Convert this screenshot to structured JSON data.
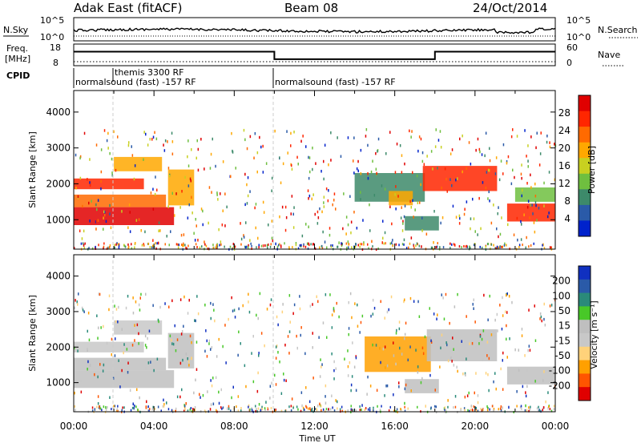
{
  "header": {
    "left": "Adak East (fitACF)",
    "center": "Beam 08",
    "right": "24/Oct/2014"
  },
  "top_panels": {
    "nsky_label": "N.Sky",
    "nsearch_label": "N.Search",
    "noise_tick_top": "10^5",
    "noise_tick_bottom": "10^0",
    "freq_label": "Freq.",
    "freq_unit": "[MHz]",
    "freq_ticks": [
      "18",
      "8"
    ],
    "nave_label": "Nave",
    "nave_ticks": [
      "60",
      "0"
    ],
    "cpid_label": "CPID",
    "cpid_segments": [
      {
        "label": "normalsound (fast) -157 RF",
        "start_h": 0,
        "end_h": 10
      },
      {
        "label": "themis 3300 RF",
        "start_h": 1.5,
        "end_h": 2
      },
      {
        "label": "normalsound (fast) -157 RF",
        "start_h": 10,
        "end_h": 24
      }
    ],
    "freq_series": {
      "x": [
        0,
        10,
        10,
        18,
        18,
        24
      ],
      "values": [
        14.5,
        14.5,
        11.0,
        11.0,
        14.5,
        14.5
      ]
    }
  },
  "colors": {
    "power_scale": [
      "#0022cc",
      "#2a5aa8",
      "#3d8a6a",
      "#6fbf3f",
      "#c8d020",
      "#ffa800",
      "#ff6a00",
      "#ff2600",
      "#e00000"
    ],
    "velocity_scale": [
      "#e00000",
      "#ff5500",
      "#ffa000",
      "#ffd27a",
      "#c8c8c8",
      "#bfbfbf",
      "#48c828",
      "#2a8a7a",
      "#2a5aa8",
      "#1030c0"
    ]
  },
  "chart_data": [
    {
      "type": "heatmap",
      "panel": "power",
      "ylabel": "Slant Range [km]",
      "xlabel": "Time UT",
      "x_ticks": [
        "00:00",
        "04:00",
        "08:00",
        "12:00",
        "16:00",
        "20:00",
        "00:00"
      ],
      "y_ticks": [
        1000,
        2000,
        3000,
        4000
      ],
      "xlim": [
        0,
        24
      ],
      "ylim": [
        180,
        4600
      ],
      "colorbar_label": "Power [dB]",
      "colorbar_ticks": [
        "28",
        "24",
        "20",
        "16",
        "12",
        "8",
        "4"
      ],
      "colorbar_range": [
        0,
        32
      ],
      "regions": [
        {
          "t0": 0.0,
          "t1": 5.0,
          "r0": 850,
          "r1": 1350,
          "level": 30
        },
        {
          "t0": 0.0,
          "t1": 4.6,
          "r0": 1350,
          "r1": 1700,
          "level": 22
        },
        {
          "t0": 0.0,
          "t1": 3.5,
          "r0": 1850,
          "r1": 2150,
          "level": 26
        },
        {
          "t0": 2.0,
          "t1": 4.4,
          "r0": 2350,
          "r1": 2750,
          "level": 20
        },
        {
          "t0": 4.7,
          "t1": 6.0,
          "r0": 1400,
          "r1": 2400,
          "level": 18
        },
        {
          "t0": 14.0,
          "t1": 17.5,
          "r0": 1500,
          "r1": 2300,
          "level": 8
        },
        {
          "t0": 15.7,
          "t1": 16.9,
          "r0": 1400,
          "r1": 1800,
          "level": 20
        },
        {
          "t0": 17.4,
          "t1": 21.1,
          "r0": 1800,
          "r1": 2500,
          "level": 26
        },
        {
          "t0": 21.6,
          "t1": 24.0,
          "r0": 950,
          "r1": 1450,
          "level": 28
        },
        {
          "t0": 22.0,
          "t1": 24.0,
          "r0": 1500,
          "r1": 1900,
          "level": 14
        },
        {
          "t0": 16.5,
          "t1": 18.2,
          "r0": 700,
          "r1": 1100,
          "level": 10
        }
      ]
    },
    {
      "type": "heatmap",
      "panel": "velocity",
      "ylabel": "Slant Range [km]",
      "xlabel": "Time UT",
      "x_ticks": [
        "00:00",
        "04:00",
        "08:00",
        "12:00",
        "16:00",
        "20:00",
        "00:00"
      ],
      "y_ticks": [
        1000,
        2000,
        3000,
        4000
      ],
      "xlim": [
        0,
        24
      ],
      "ylim": [
        180,
        4600
      ],
      "colorbar_label": "Velocity [m s⁻¹]",
      "colorbar_ticks": [
        "200",
        "100",
        "50",
        "15",
        "-15",
        "-50",
        "-100",
        "-200"
      ],
      "colorbar_range": [
        -250,
        250
      ],
      "regions": [
        {
          "t0": 0.0,
          "t1": 5.0,
          "r0": 850,
          "r1": 1350,
          "level": 0
        },
        {
          "t0": 0.0,
          "t1": 4.6,
          "r0": 1350,
          "r1": 1700,
          "level": 0
        },
        {
          "t0": 0.0,
          "t1": 3.5,
          "r0": 1850,
          "r1": 2150,
          "level": -10
        },
        {
          "t0": 2.0,
          "t1": 4.4,
          "r0": 2350,
          "r1": 2750,
          "level": -30
        },
        {
          "t0": 4.7,
          "t1": 6.0,
          "r0": 1400,
          "r1": 2400,
          "level": 0
        },
        {
          "t0": 14.5,
          "t1": 17.8,
          "r0": 1300,
          "r1": 2300,
          "level": -110
        },
        {
          "t0": 17.6,
          "t1": 21.1,
          "r0": 1600,
          "r1": 2500,
          "level": 0
        },
        {
          "t0": 21.6,
          "t1": 24.0,
          "r0": 950,
          "r1": 1450,
          "level": 0
        },
        {
          "t0": 16.5,
          "t1": 18.2,
          "r0": 700,
          "r1": 1100,
          "level": 40
        }
      ]
    }
  ]
}
